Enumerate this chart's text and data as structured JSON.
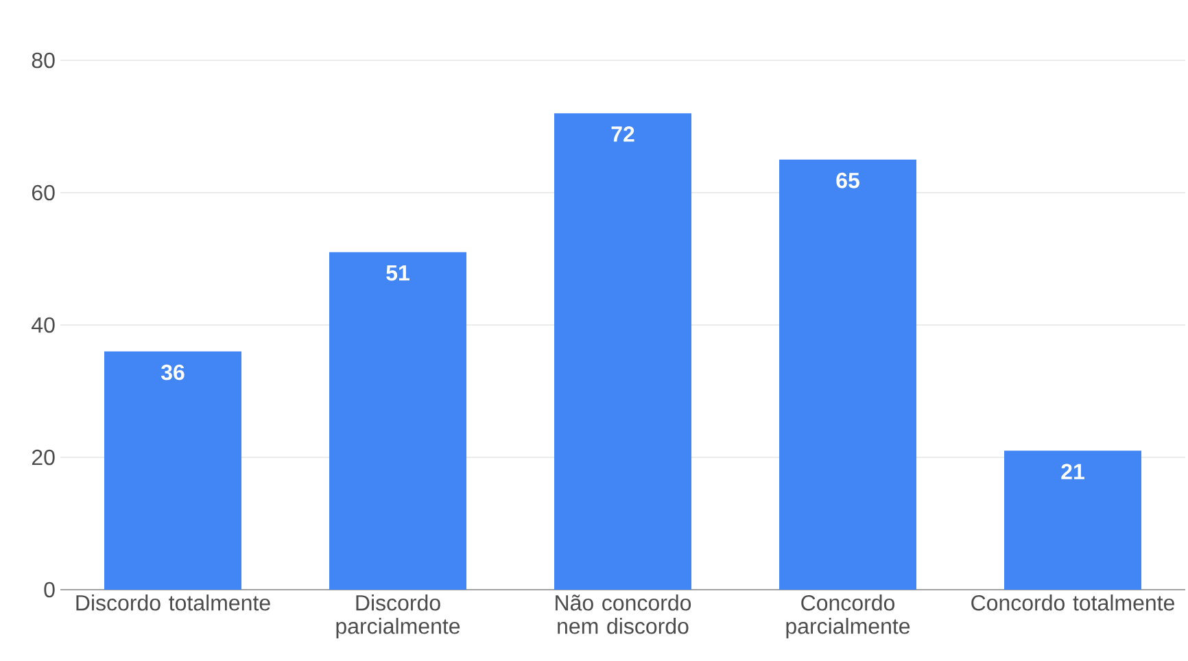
{
  "chart_data": {
    "type": "bar",
    "categories": [
      "Discordo totalmente",
      "Discordo parcialmente",
      "Não concordo nem discordo",
      "Concordo parcialmente",
      "Concordo totalmente"
    ],
    "values": [
      36,
      51,
      72,
      65,
      21
    ],
    "color": "#4285f4",
    "ylim": [
      0,
      80
    ],
    "yticks": [
      0,
      20,
      40,
      60,
      80
    ],
    "grid": "y",
    "data_labels": true
  }
}
